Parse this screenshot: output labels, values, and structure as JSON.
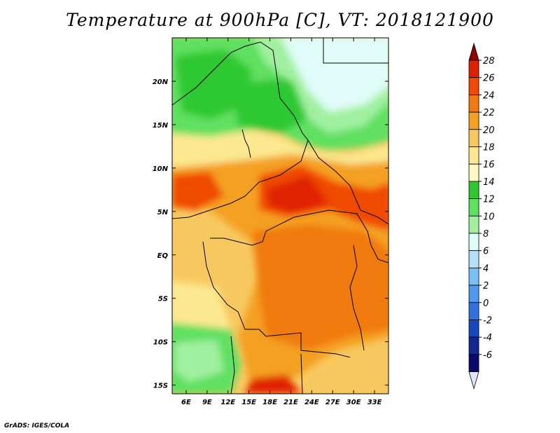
{
  "title": "Temperature at 900hPa [C], VT: 2018121900",
  "credit": "GrADS: IGES/COLA",
  "map": {
    "region": "Central Africa",
    "lat_range": [
      -16,
      25
    ],
    "lon_range": [
      4,
      35
    ],
    "lat_ticks": [
      "20N",
      "15N",
      "10N",
      "5N",
      "EQ",
      "5S",
      "10S",
      "15S"
    ],
    "lat_tick_values": [
      20,
      15,
      10,
      5,
      0,
      -5,
      -10,
      -15
    ],
    "lon_ticks": [
      "6E",
      "9E",
      "12E",
      "15E",
      "18E",
      "21E",
      "24E",
      "27E",
      "30E",
      "33E"
    ],
    "lon_tick_values": [
      6,
      9,
      12,
      15,
      18,
      21,
      24,
      27,
      30,
      33
    ]
  },
  "colorbar": {
    "labels": [
      "28",
      "26",
      "24",
      "22",
      "20",
      "18",
      "16",
      "14",
      "12",
      "10",
      "8",
      "6",
      "4",
      "2",
      "0",
      "-2",
      "-4",
      "-6"
    ],
    "colors": [
      "#8b0000",
      "#e02000",
      "#f04a00",
      "#f07a10",
      "#f4a020",
      "#f8c860",
      "#fce890",
      "#fcf8c0",
      "#2ec830",
      "#60e060",
      "#a0f0a0",
      "#e0fcf8",
      "#b4e0f8",
      "#78c0f8",
      "#5098f0",
      "#3070e0",
      "#1848c0",
      "#102890",
      "#0a0a70",
      "#e0e0ff"
    ]
  }
}
